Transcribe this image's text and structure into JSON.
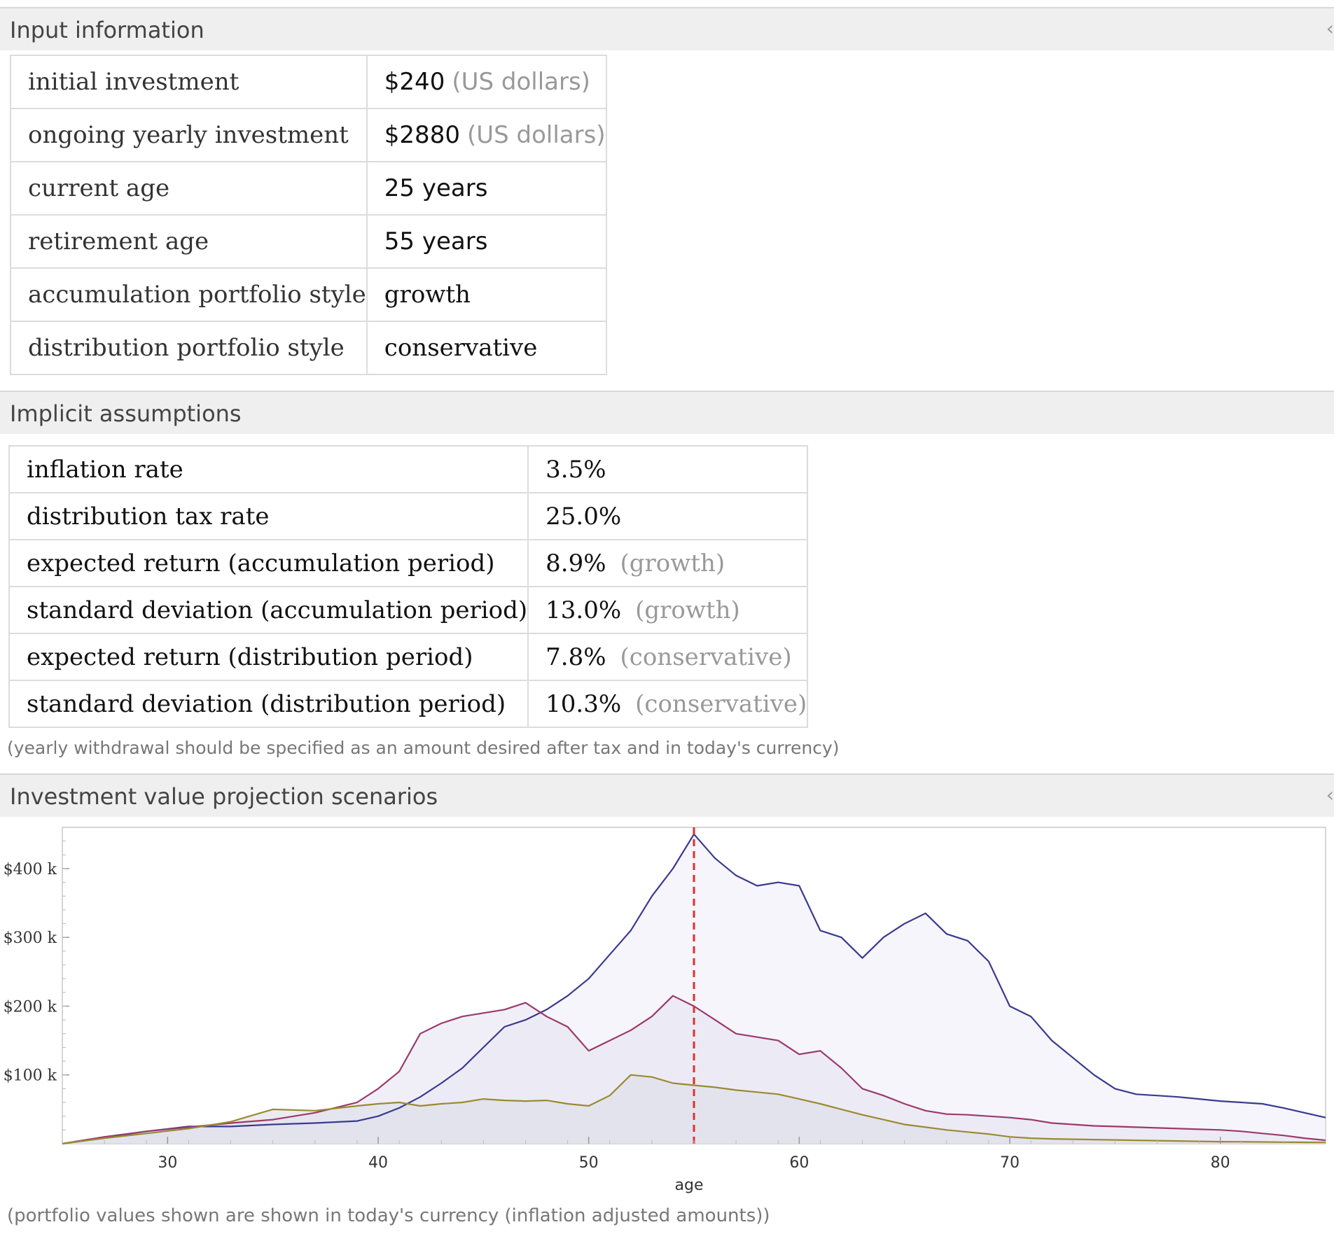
{
  "input_pod": {
    "title": "Input information",
    "rows": [
      {
        "label": "initial investment",
        "value": "$240",
        "unit": "(US dollars)"
      },
      {
        "label": "ongoing yearly investment",
        "value": "$2880",
        "unit": "(US dollars)"
      },
      {
        "label": "current age",
        "value": "25 years",
        "unit": ""
      },
      {
        "label": "retirement age",
        "value": "55 years",
        "unit": ""
      },
      {
        "label": "accumulation portfolio style",
        "value": "growth",
        "unit": ""
      },
      {
        "label": "distribution portfolio style",
        "value": "conservative",
        "unit": ""
      }
    ]
  },
  "assumptions_pod": {
    "title": "Implicit assumptions",
    "rows": [
      {
        "label": "inflation rate",
        "value": "3.5%",
        "unit": ""
      },
      {
        "label": "distribution tax rate",
        "value": "25.0%",
        "unit": ""
      },
      {
        "label": "expected return (accumulation period)",
        "value": "8.9%",
        "unit": "(growth)"
      },
      {
        "label": "standard deviation (accumulation period)",
        "value": "13.0%",
        "unit": "(growth)"
      },
      {
        "label": "expected return (distribution period)",
        "value": "7.8%",
        "unit": "(conservative)"
      },
      {
        "label": "standard deviation (distribution period)",
        "value": "10.3%",
        "unit": "(conservative)"
      }
    ],
    "note": "(yearly withdrawal should be specified as an amount desired after tax and in today's currency)"
  },
  "projection_pod": {
    "title": "Investment value projection scenarios",
    "note": "(portfolio values shown are shown in today's currency (inflation adjusted amounts))"
  },
  "chart_data": {
    "type": "line",
    "xlabel": "age",
    "ylabel": "",
    "xlim": [
      25,
      85
    ],
    "ylim": [
      0,
      460000
    ],
    "xticks": [
      30,
      40,
      50,
      60,
      70,
      80
    ],
    "xtick_labels": [
      "30",
      "40",
      "50",
      "60",
      "70",
      "80"
    ],
    "yticks": [
      100000,
      200000,
      300000,
      400000
    ],
    "ytick_labels": [
      "$100 k",
      "$200 k",
      "$300 k",
      "$400 k"
    ],
    "retirement_marker_age": 55,
    "colors": {
      "high": "#3a3a8f",
      "mid": "#9b3a6b",
      "low": "#9a8a30",
      "marker": "#e03030"
    },
    "series": [
      {
        "x": [
          25,
          27,
          29,
          31,
          33,
          35,
          37,
          39,
          40,
          41,
          42,
          43,
          44,
          45,
          46,
          47,
          48,
          49,
          50,
          51,
          52,
          53,
          54,
          55,
          56,
          57,
          58,
          59,
          60,
          61,
          62,
          63,
          64,
          65,
          66,
          67,
          68,
          69,
          70,
          71,
          72,
          73,
          74,
          75,
          76,
          77,
          78,
          79,
          80,
          81,
          82,
          83,
          84,
          85
        ],
        "values": [
          0,
          9000,
          18000,
          25000,
          25000,
          28000,
          30000,
          33000,
          40000,
          52000,
          68000,
          88000,
          110000,
          140000,
          170000,
          180000,
          195000,
          215000,
          240000,
          275000,
          310000,
          360000,
          400000,
          450000,
          415000,
          390000,
          375000,
          380000,
          375000,
          310000,
          300000,
          270000,
          300000,
          320000,
          335000,
          305000,
          295000,
          265000,
          200000,
          185000,
          150000,
          125000,
          100000,
          80000,
          72000,
          70000,
          68000,
          65000,
          62000,
          60000,
          58000,
          52000,
          45000,
          38000
        ]
      },
      {
        "x": [
          25,
          27,
          29,
          31,
          33,
          35,
          37,
          39,
          40,
          41,
          42,
          43,
          44,
          45,
          46,
          47,
          48,
          49,
          50,
          51,
          52,
          53,
          54,
          55,
          56,
          57,
          58,
          59,
          60,
          61,
          62,
          63,
          64,
          65,
          66,
          67,
          68,
          69,
          70,
          71,
          72,
          73,
          74,
          75,
          76,
          77,
          78,
          79,
          80,
          81,
          82,
          83,
          84,
          85
        ],
        "values": [
          0,
          10000,
          18000,
          24000,
          30000,
          35000,
          45000,
          60000,
          80000,
          105000,
          160000,
          175000,
          185000,
          190000,
          195000,
          205000,
          185000,
          170000,
          135000,
          150000,
          165000,
          185000,
          215000,
          200000,
          180000,
          160000,
          155000,
          150000,
          130000,
          135000,
          110000,
          80000,
          70000,
          58000,
          48000,
          43000,
          42000,
          40000,
          38000,
          35000,
          30000,
          28000,
          26000,
          25000,
          24000,
          23000,
          22000,
          21000,
          20000,
          18000,
          15000,
          12000,
          8000,
          5000
        ]
      },
      {
        "x": [
          25,
          27,
          29,
          31,
          33,
          35,
          37,
          39,
          40,
          41,
          42,
          43,
          44,
          45,
          46,
          47,
          48,
          49,
          50,
          51,
          52,
          53,
          54,
          55,
          56,
          57,
          58,
          59,
          60,
          61,
          62,
          63,
          64,
          65,
          66,
          67,
          68,
          69,
          70,
          71,
          72,
          73,
          74,
          75,
          76,
          77,
          78,
          79,
          80,
          81,
          82,
          83,
          84,
          85
        ],
        "values": [
          0,
          8000,
          15000,
          22000,
          32000,
          50000,
          48000,
          55000,
          58000,
          60000,
          55000,
          58000,
          60000,
          65000,
          63000,
          62000,
          63000,
          58000,
          55000,
          70000,
          100000,
          97000,
          88000,
          85000,
          82000,
          78000,
          75000,
          72000,
          65000,
          58000,
          50000,
          42000,
          35000,
          28000,
          24000,
          20000,
          17000,
          14000,
          10000,
          8000,
          7000,
          6500,
          6000,
          5500,
          5000,
          4500,
          4000,
          3500,
          3000,
          2800,
          2500,
          2200,
          2000,
          1800
        ]
      }
    ]
  }
}
